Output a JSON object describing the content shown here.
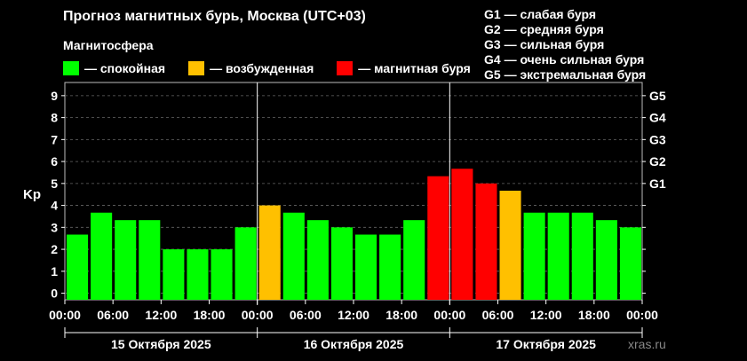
{
  "header": {
    "title": "Прогноз магнитных бурь, Москва (UTC+03)",
    "subtitle": "Магнитосфера"
  },
  "legend": [
    {
      "label": "— спокойная",
      "color": "#00ff00"
    },
    {
      "label": "— возбужденная",
      "color": "#ffc000"
    },
    {
      "label": "— магнитная буря",
      "color": "#ff0000"
    }
  ],
  "storm_levels": [
    "G1 — слабая буря",
    "G2 — средняя буря",
    "G3 — сильная буря",
    "G4 — очень сильная буря",
    "G5 — экстремальная буря"
  ],
  "watermark": "xras.ru",
  "chart_data": {
    "type": "bar",
    "ylabel": "Kp",
    "ylim": [
      -0.3,
      9.6
    ],
    "yticks": [
      "0",
      "1",
      "2",
      "3",
      "4",
      "5",
      "6",
      "7",
      "8",
      "9"
    ],
    "right_ticks": [
      {
        "kp": 5,
        "label": "G1"
      },
      {
        "kp": 6,
        "label": "G2"
      },
      {
        "kp": 7,
        "label": "G3"
      },
      {
        "kp": 8,
        "label": "G4"
      },
      {
        "kp": 9,
        "label": "G5"
      }
    ],
    "x_time_labels": [
      "00:00",
      "06:00",
      "12:00",
      "18:00",
      "00:00",
      "06:00",
      "12:00",
      "18:00",
      "00:00",
      "06:00",
      "12:00",
      "18:00",
      "00:00"
    ],
    "days": [
      "15 Октября 2025",
      "16 Октября 2025",
      "17 Октября 2025"
    ],
    "grid": true,
    "colors": {
      "quiet": "#00ff00",
      "active": "#ffc000",
      "storm": "#ff0000"
    },
    "values": [
      2.67,
      3.67,
      3.33,
      3.33,
      2.0,
      2.0,
      2.0,
      3.0,
      4.0,
      3.67,
      3.33,
      3.0,
      2.67,
      2.67,
      3.33,
      5.33,
      5.67,
      5.0,
      4.67,
      3.67,
      3.67,
      3.67,
      3.33,
      3.0
    ]
  }
}
